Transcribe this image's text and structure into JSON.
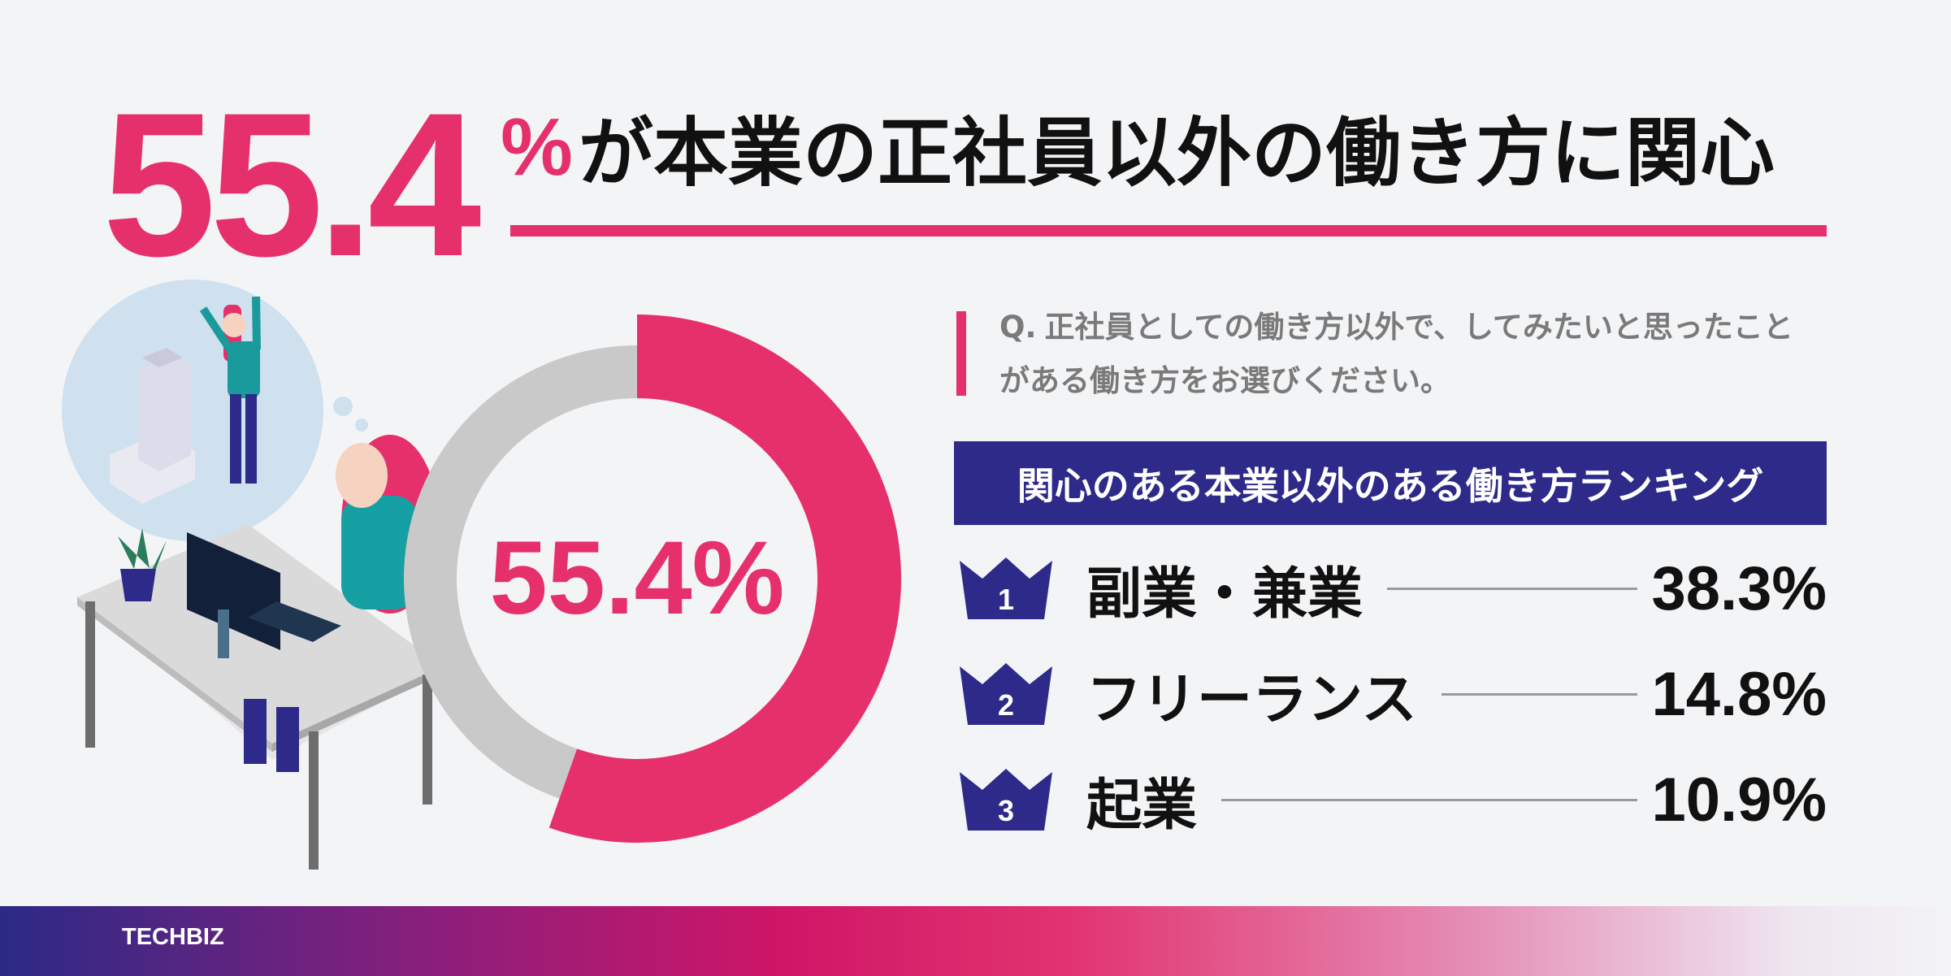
{
  "headline": {
    "number": "55.4",
    "unit": "%",
    "text": "が本業の正社員以外の働き方に関心"
  },
  "chart_data": {
    "type": "donut",
    "values": [
      55.4
    ],
    "value_labels": [
      "55.4%"
    ],
    "ylim": [
      0,
      100
    ],
    "color": "#e6306c",
    "rest_color": "#c9c9c9"
  },
  "question": {
    "prefix": "Q.",
    "text": "正社員としての働き方以外で、してみたいと思ったことがある働き方をお選びください。"
  },
  "ranking": {
    "title": "関心のある本業以外のある働き方ランキング",
    "items": [
      {
        "rank": "1",
        "label": "副業・兼業",
        "value": "38.3%"
      },
      {
        "rank": "2",
        "label": "フリーランス",
        "value": "14.8%"
      },
      {
        "rank": "3",
        "label": "起業",
        "value": "10.9%"
      }
    ]
  },
  "footer": {
    "brand": "TECHBIZ"
  }
}
